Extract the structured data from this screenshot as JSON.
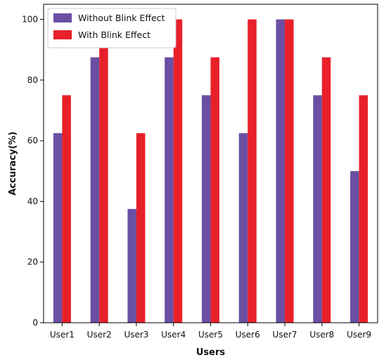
{
  "chart_data": {
    "type": "bar",
    "title": "",
    "xlabel": "Users",
    "ylabel": "Accuracy(%)",
    "categories": [
      "User1",
      "User2",
      "User3",
      "User4",
      "User5",
      "User6",
      "User7",
      "User8",
      "User9"
    ],
    "series": [
      {
        "name": "Without Blink Effect",
        "color": "#6a4fa3",
        "values": [
          62.5,
          87.5,
          37.5,
          87.5,
          75,
          62.5,
          100,
          75,
          50
        ]
      },
      {
        "name": "With Blink Effect",
        "color": "#e8202a",
        "values": [
          75,
          100,
          62.5,
          100,
          87.5,
          100,
          100,
          87.5,
          75
        ]
      }
    ],
    "ylim": [
      0,
      105
    ],
    "yticks": [
      0,
      20,
      40,
      60,
      80,
      100
    ],
    "grid": false,
    "legend_position": "top-left"
  }
}
